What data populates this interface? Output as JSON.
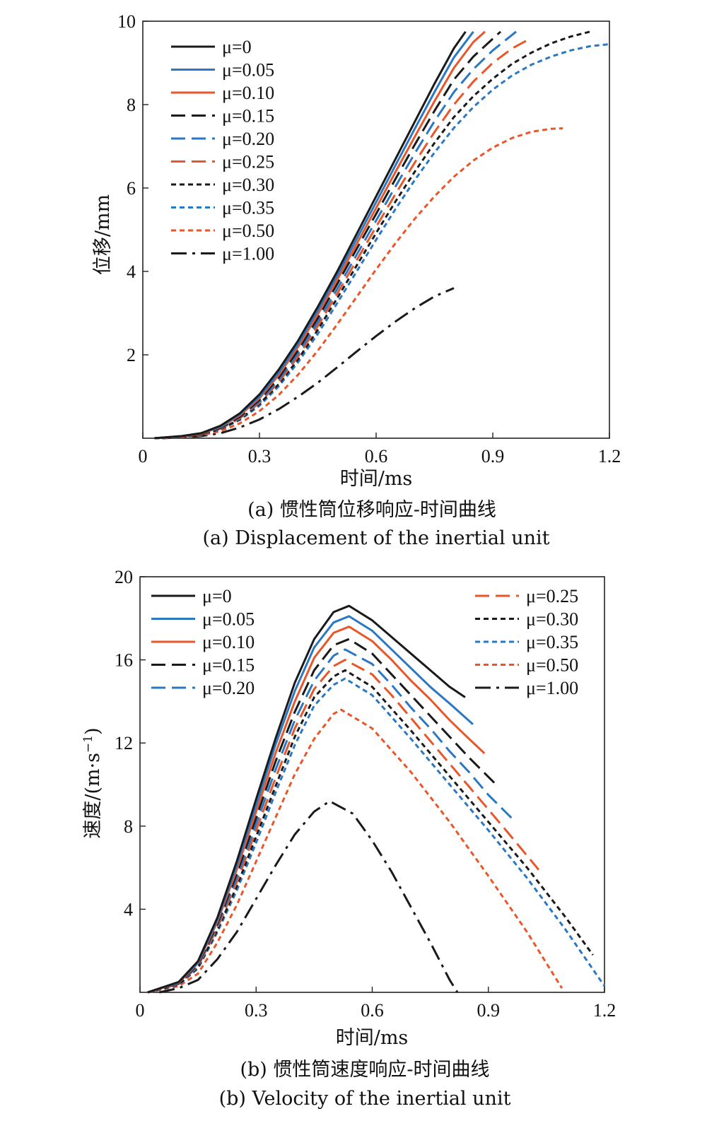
{
  "chart_data": [
    {
      "type": "line",
      "caption_zh": "(a) 惯性筒位移响应-时间曲线",
      "caption_en": "(a) Displacement of the inertial unit",
      "xlabel": "时间/ms",
      "ylabel": "位移/mm",
      "xlim": [
        0,
        1.2
      ],
      "ylim": [
        0,
        10
      ],
      "xticks": [
        0,
        0.3,
        0.6,
        0.9,
        1.2
      ],
      "xtick_labels": [
        "0",
        "0.3",
        "0.6",
        "0.9",
        "1.2"
      ],
      "yticks": [
        2,
        4,
        6,
        8,
        10
      ],
      "ytick_labels": [
        "2",
        "4",
        "6",
        "8",
        "10"
      ],
      "legend": "top-left",
      "series": [
        {
          "name": "μ=0",
          "color": "#1a1a1a",
          "style": "solid",
          "x": [
            0.03,
            0.1,
            0.15,
            0.2,
            0.25,
            0.3,
            0.35,
            0.4,
            0.45,
            0.5,
            0.55,
            0.6,
            0.65,
            0.7,
            0.75,
            0.8,
            0.83
          ],
          "y": [
            0,
            0.05,
            0.12,
            0.3,
            0.6,
            1.05,
            1.65,
            2.35,
            3.15,
            4.0,
            4.9,
            5.8,
            6.7,
            7.6,
            8.5,
            9.35,
            9.75
          ]
        },
        {
          "name": "μ=0.05",
          "color": "#2a78c4",
          "style": "solid",
          "x": [
            0.03,
            0.1,
            0.15,
            0.2,
            0.25,
            0.3,
            0.35,
            0.4,
            0.45,
            0.5,
            0.55,
            0.6,
            0.65,
            0.7,
            0.75,
            0.8,
            0.85
          ],
          "y": [
            0,
            0.05,
            0.12,
            0.28,
            0.58,
            1.0,
            1.58,
            2.27,
            3.06,
            3.9,
            4.78,
            5.66,
            6.55,
            7.43,
            8.3,
            9.13,
            9.75
          ]
        },
        {
          "name": "μ=0.10",
          "color": "#e8562a",
          "style": "solid",
          "x": [
            0.03,
            0.1,
            0.15,
            0.2,
            0.25,
            0.3,
            0.35,
            0.4,
            0.45,
            0.5,
            0.55,
            0.6,
            0.65,
            0.7,
            0.75,
            0.8,
            0.85,
            0.88
          ],
          "y": [
            0,
            0.04,
            0.11,
            0.27,
            0.55,
            0.96,
            1.52,
            2.2,
            2.97,
            3.8,
            4.66,
            5.52,
            6.39,
            7.24,
            8.08,
            8.88,
            9.5,
            9.75
          ]
        },
        {
          "name": "μ=0.15",
          "color": "#1a1a1a",
          "style": "dash",
          "x": [
            0.03,
            0.1,
            0.15,
            0.2,
            0.25,
            0.3,
            0.35,
            0.4,
            0.45,
            0.5,
            0.55,
            0.6,
            0.65,
            0.7,
            0.75,
            0.8,
            0.85,
            0.92
          ],
          "y": [
            0,
            0.04,
            0.1,
            0.25,
            0.52,
            0.92,
            1.46,
            2.12,
            2.88,
            3.7,
            4.54,
            5.38,
            6.22,
            7.05,
            7.85,
            8.6,
            9.15,
            9.75
          ]
        },
        {
          "name": "μ=0.20",
          "color": "#2a78c4",
          "style": "dash",
          "x": [
            0.03,
            0.1,
            0.15,
            0.2,
            0.25,
            0.3,
            0.35,
            0.4,
            0.45,
            0.5,
            0.55,
            0.6,
            0.65,
            0.7,
            0.75,
            0.8,
            0.85,
            0.9,
            0.96
          ],
          "y": [
            0,
            0.04,
            0.1,
            0.24,
            0.5,
            0.88,
            1.4,
            2.04,
            2.78,
            3.58,
            4.4,
            5.22,
            6.04,
            6.84,
            7.6,
            8.3,
            8.85,
            9.3,
            9.75
          ]
        },
        {
          "name": "μ=0.25",
          "color": "#e8562a",
          "style": "dash",
          "x": [
            0.03,
            0.1,
            0.15,
            0.2,
            0.25,
            0.3,
            0.35,
            0.4,
            0.45,
            0.5,
            0.55,
            0.6,
            0.65,
            0.7,
            0.75,
            0.8,
            0.85,
            0.9,
            0.95,
            0.99
          ],
          "y": [
            0,
            0.04,
            0.09,
            0.23,
            0.48,
            0.85,
            1.35,
            1.97,
            2.69,
            3.47,
            4.27,
            5.07,
            5.86,
            6.62,
            7.34,
            8.0,
            8.55,
            9.0,
            9.35,
            9.55
          ]
        },
        {
          "name": "μ=0.30",
          "color": "#1a1a1a",
          "style": "dot",
          "x": [
            0.03,
            0.1,
            0.15,
            0.2,
            0.25,
            0.3,
            0.35,
            0.4,
            0.45,
            0.5,
            0.55,
            0.6,
            0.65,
            0.7,
            0.75,
            0.8,
            0.85,
            0.9,
            0.95,
            1.0,
            1.05,
            1.1,
            1.15
          ],
          "y": [
            0,
            0.04,
            0.09,
            0.22,
            0.46,
            0.82,
            1.3,
            1.9,
            2.6,
            3.36,
            4.14,
            4.92,
            5.68,
            6.4,
            7.08,
            7.7,
            8.2,
            8.62,
            8.98,
            9.25,
            9.47,
            9.63,
            9.75
          ]
        },
        {
          "name": "μ=0.35",
          "color": "#2a78c4",
          "style": "dot",
          "x": [
            0.03,
            0.1,
            0.15,
            0.2,
            0.25,
            0.3,
            0.35,
            0.4,
            0.45,
            0.5,
            0.55,
            0.6,
            0.65,
            0.7,
            0.75,
            0.8,
            0.85,
            0.9,
            0.95,
            1.0,
            1.05,
            1.1,
            1.15,
            1.2
          ],
          "y": [
            0,
            0.03,
            0.08,
            0.21,
            0.44,
            0.78,
            1.25,
            1.83,
            2.5,
            3.24,
            4.0,
            4.76,
            5.5,
            6.2,
            6.85,
            7.44,
            7.94,
            8.36,
            8.7,
            8.96,
            9.15,
            9.3,
            9.4,
            9.45
          ]
        },
        {
          "name": "μ=0.50",
          "color": "#e8562a",
          "style": "dot",
          "x": [
            0.03,
            0.1,
            0.15,
            0.2,
            0.25,
            0.3,
            0.35,
            0.4,
            0.45,
            0.5,
            0.55,
            0.6,
            0.65,
            0.7,
            0.75,
            0.8,
            0.85,
            0.9,
            0.95,
            1.0,
            1.05,
            1.08
          ],
          "y": [
            0,
            0.03,
            0.07,
            0.17,
            0.36,
            0.65,
            1.04,
            1.53,
            2.1,
            2.73,
            3.39,
            4.05,
            4.68,
            5.27,
            5.8,
            6.27,
            6.66,
            6.97,
            7.2,
            7.35,
            7.42,
            7.43
          ]
        },
        {
          "name": "μ=1.00",
          "color": "#1a1a1a",
          "style": "dashdot",
          "x": [
            0.05,
            0.1,
            0.15,
            0.2,
            0.25,
            0.3,
            0.35,
            0.4,
            0.45,
            0.5,
            0.55,
            0.6,
            0.65,
            0.7,
            0.75,
            0.8
          ],
          "y": [
            0,
            0.02,
            0.05,
            0.12,
            0.26,
            0.45,
            0.7,
            1.0,
            1.33,
            1.7,
            2.08,
            2.45,
            2.8,
            3.12,
            3.4,
            3.6
          ]
        }
      ]
    },
    {
      "type": "line",
      "caption_zh": "(b) 惯性筒速度响应-时间曲线",
      "caption_en": "(b) Velocity of the inertial unit",
      "xlabel": "时间/ms",
      "ylabel": "速度/(m·s",
      "ylabel_sup": "−1",
      "ylabel_end": ")",
      "xlim": [
        0,
        1.2
      ],
      "ylim": [
        0,
        20
      ],
      "xticks": [
        0,
        0.3,
        0.6,
        0.9,
        1.2
      ],
      "xtick_labels": [
        "0",
        "0.3",
        "0.6",
        "0.9",
        "1.2"
      ],
      "yticks": [
        4,
        8,
        12,
        16,
        20
      ],
      "ytick_labels": [
        "4",
        "8",
        "12",
        "16",
        "20"
      ],
      "legend": "top, split left and right",
      "series": [
        {
          "name": "μ=0",
          "color": "#1a1a1a",
          "style": "solid",
          "x": [
            0.02,
            0.1,
            0.15,
            0.2,
            0.25,
            0.3,
            0.35,
            0.4,
            0.45,
            0.5,
            0.54,
            0.6,
            0.65,
            0.7,
            0.75,
            0.8,
            0.84
          ],
          "y": [
            0,
            0.5,
            1.5,
            3.6,
            6.3,
            9.3,
            12.2,
            14.9,
            17.0,
            18.3,
            18.6,
            17.9,
            17.1,
            16.3,
            15.5,
            14.7,
            14.2
          ]
        },
        {
          "name": "μ=0.05",
          "color": "#2a78c4",
          "style": "solid",
          "x": [
            0.02,
            0.1,
            0.15,
            0.2,
            0.25,
            0.3,
            0.35,
            0.4,
            0.45,
            0.5,
            0.54,
            0.6,
            0.65,
            0.7,
            0.75,
            0.8,
            0.86
          ],
          "y": [
            0,
            0.48,
            1.45,
            3.5,
            6.1,
            9.0,
            11.9,
            14.5,
            16.6,
            17.8,
            18.1,
            17.4,
            16.5,
            15.6,
            14.7,
            13.9,
            12.9
          ]
        },
        {
          "name": "μ=0.10",
          "color": "#e8562a",
          "style": "solid",
          "x": [
            0.02,
            0.1,
            0.15,
            0.2,
            0.25,
            0.3,
            0.35,
            0.4,
            0.45,
            0.5,
            0.54,
            0.6,
            0.65,
            0.7,
            0.75,
            0.8,
            0.85,
            0.89
          ],
          "y": [
            0,
            0.46,
            1.4,
            3.4,
            5.9,
            8.7,
            11.5,
            14.0,
            16.1,
            17.3,
            17.6,
            16.9,
            16.0,
            15.0,
            14.1,
            13.1,
            12.2,
            11.5
          ]
        },
        {
          "name": "μ=0.15",
          "color": "#1a1a1a",
          "style": "dash",
          "x": [
            0.02,
            0.1,
            0.15,
            0.2,
            0.25,
            0.3,
            0.35,
            0.4,
            0.45,
            0.5,
            0.54,
            0.6,
            0.65,
            0.7,
            0.75,
            0.8,
            0.85,
            0.92
          ],
          "y": [
            0,
            0.44,
            1.35,
            3.3,
            5.7,
            8.4,
            11.1,
            13.5,
            15.5,
            16.7,
            17.0,
            16.3,
            15.3,
            14.3,
            13.3,
            12.3,
            11.3,
            10.0
          ]
        },
        {
          "name": "μ=0.20",
          "color": "#2a78c4",
          "style": "dash",
          "x": [
            0.02,
            0.1,
            0.15,
            0.2,
            0.25,
            0.3,
            0.35,
            0.4,
            0.45,
            0.5,
            0.53,
            0.6,
            0.65,
            0.7,
            0.75,
            0.8,
            0.85,
            0.9,
            0.97
          ],
          "y": [
            0,
            0.42,
            1.3,
            3.2,
            5.5,
            8.1,
            10.7,
            13.1,
            15.0,
            16.2,
            16.5,
            15.8,
            14.8,
            13.7,
            12.7,
            11.6,
            10.6,
            9.5,
            8.2
          ]
        },
        {
          "name": "μ=0.25",
          "color": "#e8562a",
          "style": "dash",
          "x": [
            0.02,
            0.1,
            0.15,
            0.2,
            0.25,
            0.3,
            0.35,
            0.4,
            0.45,
            0.5,
            0.53,
            0.6,
            0.65,
            0.7,
            0.75,
            0.8,
            0.85,
            0.9,
            0.95,
            1.03
          ],
          "y": [
            0,
            0.4,
            1.25,
            3.1,
            5.3,
            7.8,
            10.3,
            12.7,
            14.6,
            15.7,
            16.0,
            15.3,
            14.3,
            13.2,
            12.1,
            11.0,
            9.9,
            8.8,
            7.7,
            5.9
          ]
        },
        {
          "name": "μ=0.30",
          "color": "#1a1a1a",
          "style": "dot",
          "x": [
            0.02,
            0.1,
            0.15,
            0.2,
            0.25,
            0.3,
            0.35,
            0.4,
            0.45,
            0.5,
            0.53,
            0.6,
            0.7,
            0.8,
            0.9,
            1.0,
            1.1,
            1.17
          ],
          "y": [
            0,
            0.38,
            1.2,
            3.0,
            5.1,
            7.5,
            9.9,
            12.3,
            14.2,
            15.2,
            15.5,
            14.7,
            12.6,
            10.4,
            8.2,
            6.0,
            3.6,
            1.8
          ]
        },
        {
          "name": "μ=0.35",
          "color": "#2a78c4",
          "style": "dot",
          "x": [
            0.02,
            0.1,
            0.15,
            0.2,
            0.25,
            0.3,
            0.35,
            0.4,
            0.45,
            0.5,
            0.53,
            0.6,
            0.7,
            0.8,
            0.9,
            1.0,
            1.1,
            1.2
          ],
          "y": [
            0,
            0.36,
            1.15,
            2.9,
            4.9,
            7.2,
            9.6,
            11.9,
            13.8,
            14.8,
            15.1,
            14.3,
            12.2,
            10.0,
            7.8,
            5.5,
            3.0,
            0.3
          ]
        },
        {
          "name": "μ=0.50",
          "color": "#e8562a",
          "style": "dot",
          "x": [
            0.02,
            0.1,
            0.15,
            0.2,
            0.25,
            0.3,
            0.35,
            0.4,
            0.45,
            0.5,
            0.52,
            0.6,
            0.7,
            0.8,
            0.9,
            1.0,
            1.09
          ],
          "y": [
            0,
            0.3,
            0.9,
            2.4,
            4.2,
            6.3,
            8.4,
            10.5,
            12.2,
            13.4,
            13.6,
            12.7,
            10.6,
            8.2,
            5.6,
            2.9,
            0.2
          ]
        },
        {
          "name": "μ=1.00",
          "color": "#1a1a1a",
          "style": "dashdot",
          "x": [
            0.05,
            0.1,
            0.15,
            0.2,
            0.25,
            0.3,
            0.35,
            0.4,
            0.45,
            0.49,
            0.55,
            0.6,
            0.65,
            0.7,
            0.75,
            0.8,
            0.82
          ],
          "y": [
            0,
            0.2,
            0.6,
            1.6,
            2.9,
            4.5,
            6.1,
            7.6,
            8.7,
            9.2,
            8.6,
            7.3,
            5.8,
            4.1,
            2.4,
            0.6,
            0
          ]
        }
      ]
    }
  ]
}
